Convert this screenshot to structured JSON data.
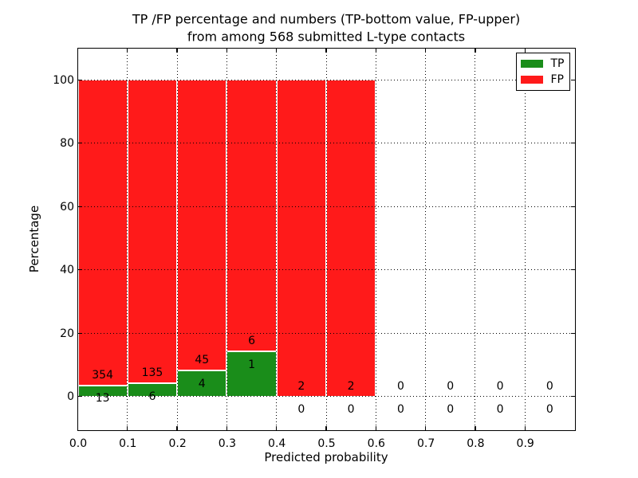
{
  "chart_data": {
    "type": "bar",
    "stacked": true,
    "normalized": "each bar sums to 100%",
    "title_line1": "TP /FP percentage and numbers (TP-bottom value, FP-upper)",
    "title_line2": "from among 568 submitted L-type contacts",
    "xlabel": "Predicted probability",
    "ylabel": "Percentage",
    "total_submitted": 568,
    "bin_edges": [
      0.0,
      0.1,
      0.2,
      0.3,
      0.4,
      0.5,
      0.6,
      0.7,
      0.8,
      0.9,
      1.0
    ],
    "series": [
      {
        "name": "TP",
        "color": "#1a8d1a",
        "counts": [
          13,
          6,
          4,
          1,
          0,
          0,
          0,
          0,
          0,
          0
        ]
      },
      {
        "name": "FP",
        "color": "#ff1a1a",
        "counts": [
          354,
          135,
          45,
          6,
          2,
          2,
          0,
          0,
          0,
          0
        ]
      }
    ],
    "tp_percent_by_bin": [
      3.54,
      4.26,
      8.16,
      14.29,
      0,
      0,
      null,
      null,
      null,
      null
    ],
    "fp_percent_by_bin": [
      96.46,
      95.74,
      91.84,
      85.71,
      100,
      100,
      null,
      null,
      null,
      null
    ],
    "x_tick_labels": [
      "0.0",
      "0.1",
      "0.2",
      "0.3",
      "0.4",
      "0.5",
      "0.6",
      "0.7",
      "0.8",
      "0.9"
    ],
    "y_tick_labels": [
      "0",
      "20",
      "40",
      "60",
      "80",
      "100"
    ],
    "y_tick_values": [
      0,
      20,
      40,
      60,
      80,
      100
    ],
    "xlim": [
      0,
      1.0
    ],
    "ylim": [
      -10.5,
      110
    ],
    "grid": "dotted",
    "legend": {
      "position": "upper right",
      "entries": [
        "TP",
        "FP"
      ]
    },
    "bar_edge_color": "#ffffff"
  }
}
